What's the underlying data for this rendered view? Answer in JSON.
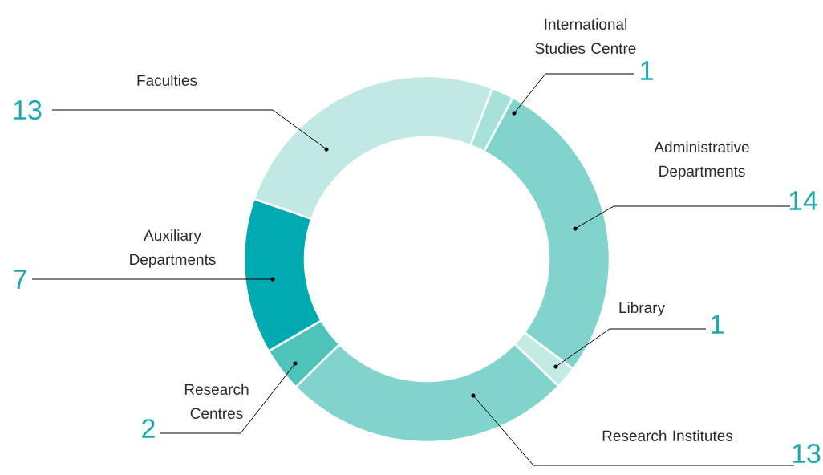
{
  "chart_data": {
    "type": "donut",
    "categories": [
      "International Studies Centre",
      "Administrative Departments",
      "Library",
      "Research Institutes",
      "Research Centres",
      "Auxiliary Departments",
      "Faculties"
    ],
    "values": [
      1,
      14,
      1,
      13,
      2,
      7,
      13
    ],
    "colors": [
      "#a6e2d9",
      "#80d4cc",
      "#c2ebe4",
      "#80d4cc",
      "#4fc3b9",
      "#00aab1",
      "#bfe9e2"
    ],
    "data_labels": true
  }
}
